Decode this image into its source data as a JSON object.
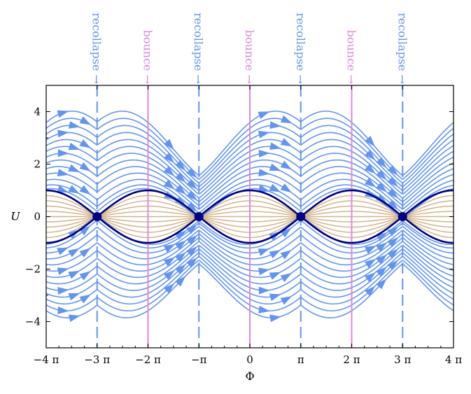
{
  "chart_data": {
    "type": "phase portrait",
    "xlabel": "Φ",
    "ylabel": "U",
    "xlim": [
      -12.566,
      12.566
    ],
    "ylim": [
      -5,
      5
    ],
    "x_ticks": [
      {
        "value": -12.566,
        "label": "−4 π"
      },
      {
        "value": -9.425,
        "label": "−3 π"
      },
      {
        "value": -6.283,
        "label": "−2 π"
      },
      {
        "value": -3.142,
        "label": "−π"
      },
      {
        "value": 0,
        "label": "0"
      },
      {
        "value": 3.142,
        "label": "π"
      },
      {
        "value": 6.283,
        "label": "2 π"
      },
      {
        "value": 9.425,
        "label": "3 π"
      },
      {
        "value": 12.566,
        "label": "4 π"
      }
    ],
    "y_ticks": [
      {
        "value": -4,
        "label": "−4"
      },
      {
        "value": -2,
        "label": "−2"
      },
      {
        "value": 0,
        "label": "0"
      },
      {
        "value": 2,
        "label": "2"
      },
      {
        "value": 4,
        "label": "4"
      }
    ],
    "markers": [
      {
        "x": -9.425,
        "label": "recollapse →",
        "kind": "recollapse"
      },
      {
        "x": -6.283,
        "label": "bounce →",
        "kind": "bounce"
      },
      {
        "x": -3.142,
        "label": "recollapse →",
        "kind": "recollapse"
      },
      {
        "x": 0,
        "label": "bounce →",
        "kind": "bounce"
      },
      {
        "x": 3.142,
        "label": "recollapse →",
        "kind": "recollapse"
      },
      {
        "x": 6.283,
        "label": "bounce →",
        "kind": "bounce"
      },
      {
        "x": 9.425,
        "label": "recollapse →",
        "kind": "recollapse"
      }
    ],
    "fixed_points": [
      {
        "x": -9.425,
        "y": 0
      },
      {
        "x": -3.142,
        "y": 0
      },
      {
        "x": 3.142,
        "y": 0
      },
      {
        "x": 9.425,
        "y": 0
      }
    ],
    "separatrix": "U = ±|cos(Φ/2)|",
    "flow_levels_above": [
      1.1,
      1.35,
      1.7,
      2.1,
      2.5,
      2.9,
      3.3,
      3.7,
      4.1,
      4.5,
      4.9,
      5.3,
      5.7
    ],
    "flow_levels_below": [
      -1.1,
      -1.35,
      -1.7,
      -2.1,
      -2.5,
      -2.9,
      -3.3,
      -3.7,
      -4.1,
      -4.5,
      -4.9,
      -5.3,
      -5.7
    ],
    "inner_fractions": [
      -0.8,
      -0.6,
      -0.4,
      -0.2,
      0,
      0.2,
      0.4,
      0.6,
      0.8
    ],
    "colors": {
      "flow": "#6495ed",
      "separatrix": "#000080",
      "inner": "#d2b48c",
      "recollapse": "#6495ed",
      "bounce": "#dd88dd",
      "fixed_point": "#000080",
      "axis": "#000000"
    }
  }
}
